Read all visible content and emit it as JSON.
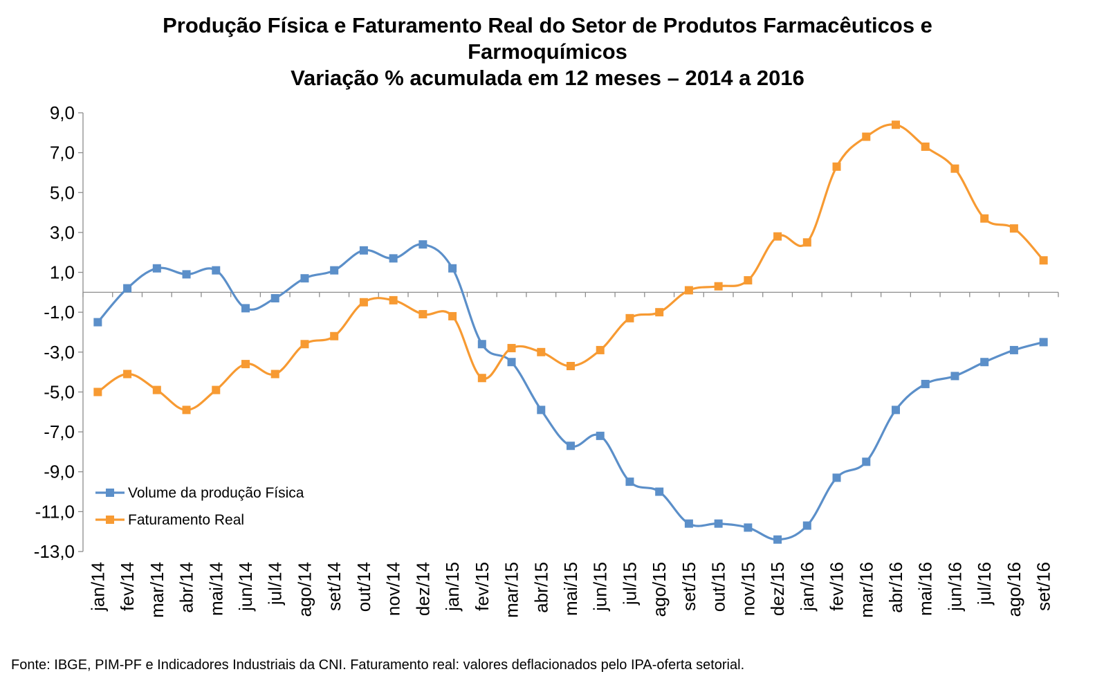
{
  "chart_data": {
    "type": "line",
    "title_lines": [
      "Produção Física e Faturamento Real do Setor de Produtos Farmacêuticos e",
      "Farmoquímicos",
      "Variação % acumulada em 12 meses – 2014 a 2016"
    ],
    "xlabel": "",
    "ylabel": "",
    "ylim": [
      -13,
      9
    ],
    "y_ticks": [
      "9,0",
      "7,0",
      "5,0",
      "3,0",
      "1,0",
      "-1,0",
      "-3,0",
      "-5,0",
      "-7,0",
      "-9,0",
      "-11,0",
      "-13,0"
    ],
    "y_tick_values": [
      9,
      7,
      5,
      3,
      1,
      -1,
      -3,
      -5,
      -7,
      -9,
      -11,
      -13
    ],
    "categories": [
      "jan/14",
      "fev/14",
      "mar/14",
      "abr/14",
      "mai/14",
      "jun/14",
      "jul/14",
      "ago/14",
      "set/14",
      "out/14",
      "nov/14",
      "dez/14",
      "jan/15",
      "fev/15",
      "mar/15",
      "abr/15",
      "mai/15",
      "jun/15",
      "jul/15",
      "ago/15",
      "set/15",
      "out/15",
      "nov/15",
      "dez/15",
      "jan/16",
      "fev/16",
      "mar/16",
      "abr/16",
      "mai/16",
      "jun/16",
      "jul/16",
      "ago/16",
      "set/16"
    ],
    "series": [
      {
        "name": "Volume da produção Física",
        "color": "#5B8FC9",
        "values": [
          -1.5,
          0.2,
          1.2,
          0.9,
          1.1,
          -0.8,
          -0.3,
          0.7,
          1.1,
          2.1,
          1.7,
          2.4,
          1.2,
          -2.6,
          -3.5,
          -5.9,
          -7.7,
          -7.2,
          -9.5,
          -10.0,
          -11.6,
          -11.6,
          -11.8,
          -12.4,
          -11.7,
          -9.3,
          -8.5,
          -5.9,
          -4.6,
          -4.2,
          -3.5,
          -2.9,
          -2.5
        ]
      },
      {
        "name": "Faturamento Real",
        "color": "#F79A32",
        "values": [
          -5.0,
          -4.1,
          -4.9,
          -5.9,
          -4.9,
          -3.6,
          -4.1,
          -2.6,
          -2.2,
          -0.5,
          -0.4,
          -1.1,
          -1.2,
          -4.3,
          -2.8,
          -3.0,
          -3.7,
          -2.9,
          -1.3,
          -1.0,
          0.1,
          0.3,
          0.6,
          2.8,
          2.5,
          6.3,
          7.8,
          8.4,
          7.3,
          6.2,
          3.7,
          3.2,
          1.6
        ]
      }
    ],
    "legend_position": "bottom-left",
    "grid": false
  },
  "source_note": "Fonte: IBGE, PIM-PF e Indicadores Industriais da CNI. Faturamento real: valores deflacionados pelo IPA-oferta setorial."
}
